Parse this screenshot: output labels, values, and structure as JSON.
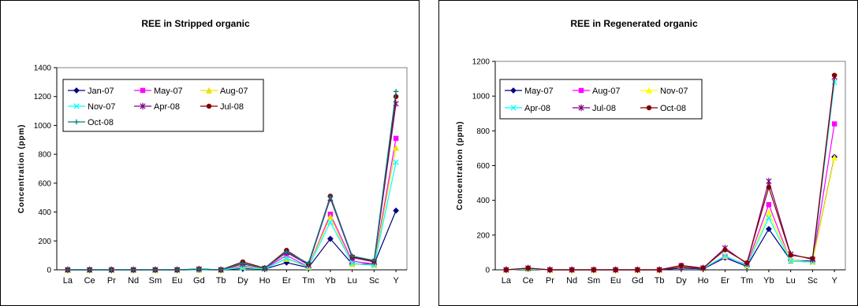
{
  "chart_data": [
    {
      "type": "line",
      "title": "REE in Stripped organic",
      "xlabel": "",
      "ylabel": "Concentration (ppm)",
      "ylim": [
        0,
        1400
      ],
      "yticks": [
        0,
        200,
        400,
        600,
        800,
        1000,
        1200,
        1400
      ],
      "grid": false,
      "legend": "top-left, inside plot, 3 columns",
      "categories": [
        "La",
        "Ce",
        "Pr",
        "Nd",
        "Sm",
        "Eu",
        "Gd",
        "Tb",
        "Dy",
        "Ho",
        "Er",
        "Tm",
        "Yb",
        "Lu",
        "Sc",
        "Y"
      ],
      "series": [
        {
          "name": "Jan-07",
          "color": "#000080",
          "marker": "diamond",
          "values": [
            0,
            0,
            0,
            0,
            0,
            0,
            0,
            0,
            10,
            5,
            50,
            15,
            215,
            40,
            40,
            410
          ]
        },
        {
          "name": "May-07",
          "color": "#ff00ff",
          "marker": "square",
          "values": [
            0,
            0,
            0,
            0,
            0,
            0,
            0,
            0,
            25,
            8,
            100,
            20,
            385,
            60,
            40,
            910
          ]
        },
        {
          "name": "Aug-07",
          "color": "#e6e600",
          "marker": "triangle",
          "values": [
            0,
            0,
            0,
            0,
            0,
            0,
            0,
            0,
            20,
            8,
            75,
            20,
            365,
            40,
            35,
            845
          ]
        },
        {
          "name": "Nov-07",
          "color": "#00ffff",
          "marker": "x",
          "values": [
            0,
            0,
            0,
            0,
            0,
            0,
            0,
            0,
            15,
            5,
            80,
            20,
            330,
            45,
            30,
            745
          ]
        },
        {
          "name": "Apr-08",
          "color": "#800080",
          "marker": "star",
          "values": [
            0,
            0,
            0,
            0,
            0,
            0,
            5,
            0,
            40,
            10,
            120,
            35,
            495,
            85,
            55,
            1150
          ]
        },
        {
          "name": "Jul-08",
          "color": "#800000",
          "marker": "circle",
          "values": [
            0,
            0,
            0,
            0,
            0,
            0,
            5,
            0,
            55,
            12,
            135,
            40,
            510,
            90,
            60,
            1200
          ]
        },
        {
          "name": "Oct-08",
          "color": "#008080",
          "marker": "plus",
          "values": [
            0,
            0,
            0,
            0,
            0,
            0,
            5,
            0,
            45,
            10,
            125,
            45,
            505,
            95,
            65,
            1235
          ]
        }
      ]
    },
    {
      "type": "line",
      "title": "REE in Regenerated organic",
      "xlabel": "",
      "ylabel": "Concentration (ppm)",
      "ylim": [
        0,
        1200
      ],
      "yticks": [
        0,
        200,
        400,
        600,
        800,
        1000,
        1200
      ],
      "grid": false,
      "legend": "top-left, inside plot, 3 columns",
      "categories": [
        "La",
        "Ce",
        "Pr",
        "Nd",
        "Sm",
        "Eu",
        "Gd",
        "Tb",
        "Dy",
        "Ho",
        "Er",
        "Tm",
        "Yb",
        "Lu",
        "Sc",
        "Y"
      ],
      "series": [
        {
          "name": "May-07",
          "color": "#000080",
          "marker": "diamond",
          "values": [
            0,
            5,
            0,
            0,
            0,
            0,
            0,
            0,
            10,
            5,
            70,
            20,
            235,
            55,
            50,
            650
          ]
        },
        {
          "name": "Aug-07",
          "color": "#ff00ff",
          "marker": "square",
          "values": [
            0,
            5,
            0,
            0,
            0,
            0,
            0,
            0,
            25,
            10,
            75,
            30,
            375,
            50,
            45,
            840
          ]
        },
        {
          "name": "Nov-07",
          "color": "#ffff00",
          "marker": "triangle",
          "values": [
            0,
            5,
            0,
            0,
            0,
            0,
            0,
            0,
            20,
            10,
            80,
            25,
            330,
            55,
            45,
            645
          ]
        },
        {
          "name": "Apr-08",
          "color": "#00ffff",
          "marker": "x",
          "values": [
            0,
            5,
            0,
            0,
            0,
            0,
            0,
            0,
            15,
            8,
            80,
            25,
            300,
            50,
            45,
            1080
          ]
        },
        {
          "name": "Jul-08",
          "color": "#800080",
          "marker": "star",
          "values": [
            0,
            10,
            0,
            0,
            0,
            0,
            0,
            0,
            15,
            10,
            125,
            35,
            510,
            90,
            60,
            1110
          ]
        },
        {
          "name": "Oct-08",
          "color": "#800000",
          "marker": "circle",
          "values": [
            0,
            10,
            0,
            0,
            0,
            0,
            0,
            0,
            25,
            10,
            115,
            40,
            475,
            85,
            65,
            1120
          ]
        }
      ]
    }
  ]
}
